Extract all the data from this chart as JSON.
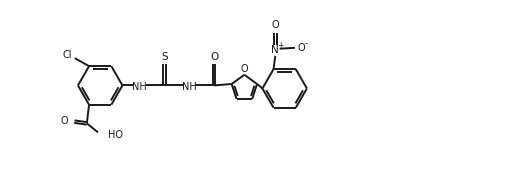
{
  "line_color": "#1a1a1a",
  "bg_color": "#ffffff",
  "lw": 1.4,
  "fig_w": 5.19,
  "fig_h": 1.78,
  "dpi": 100,
  "xlim": [
    -0.3,
    10.5
  ],
  "ylim": [
    -1.8,
    2.2
  ]
}
